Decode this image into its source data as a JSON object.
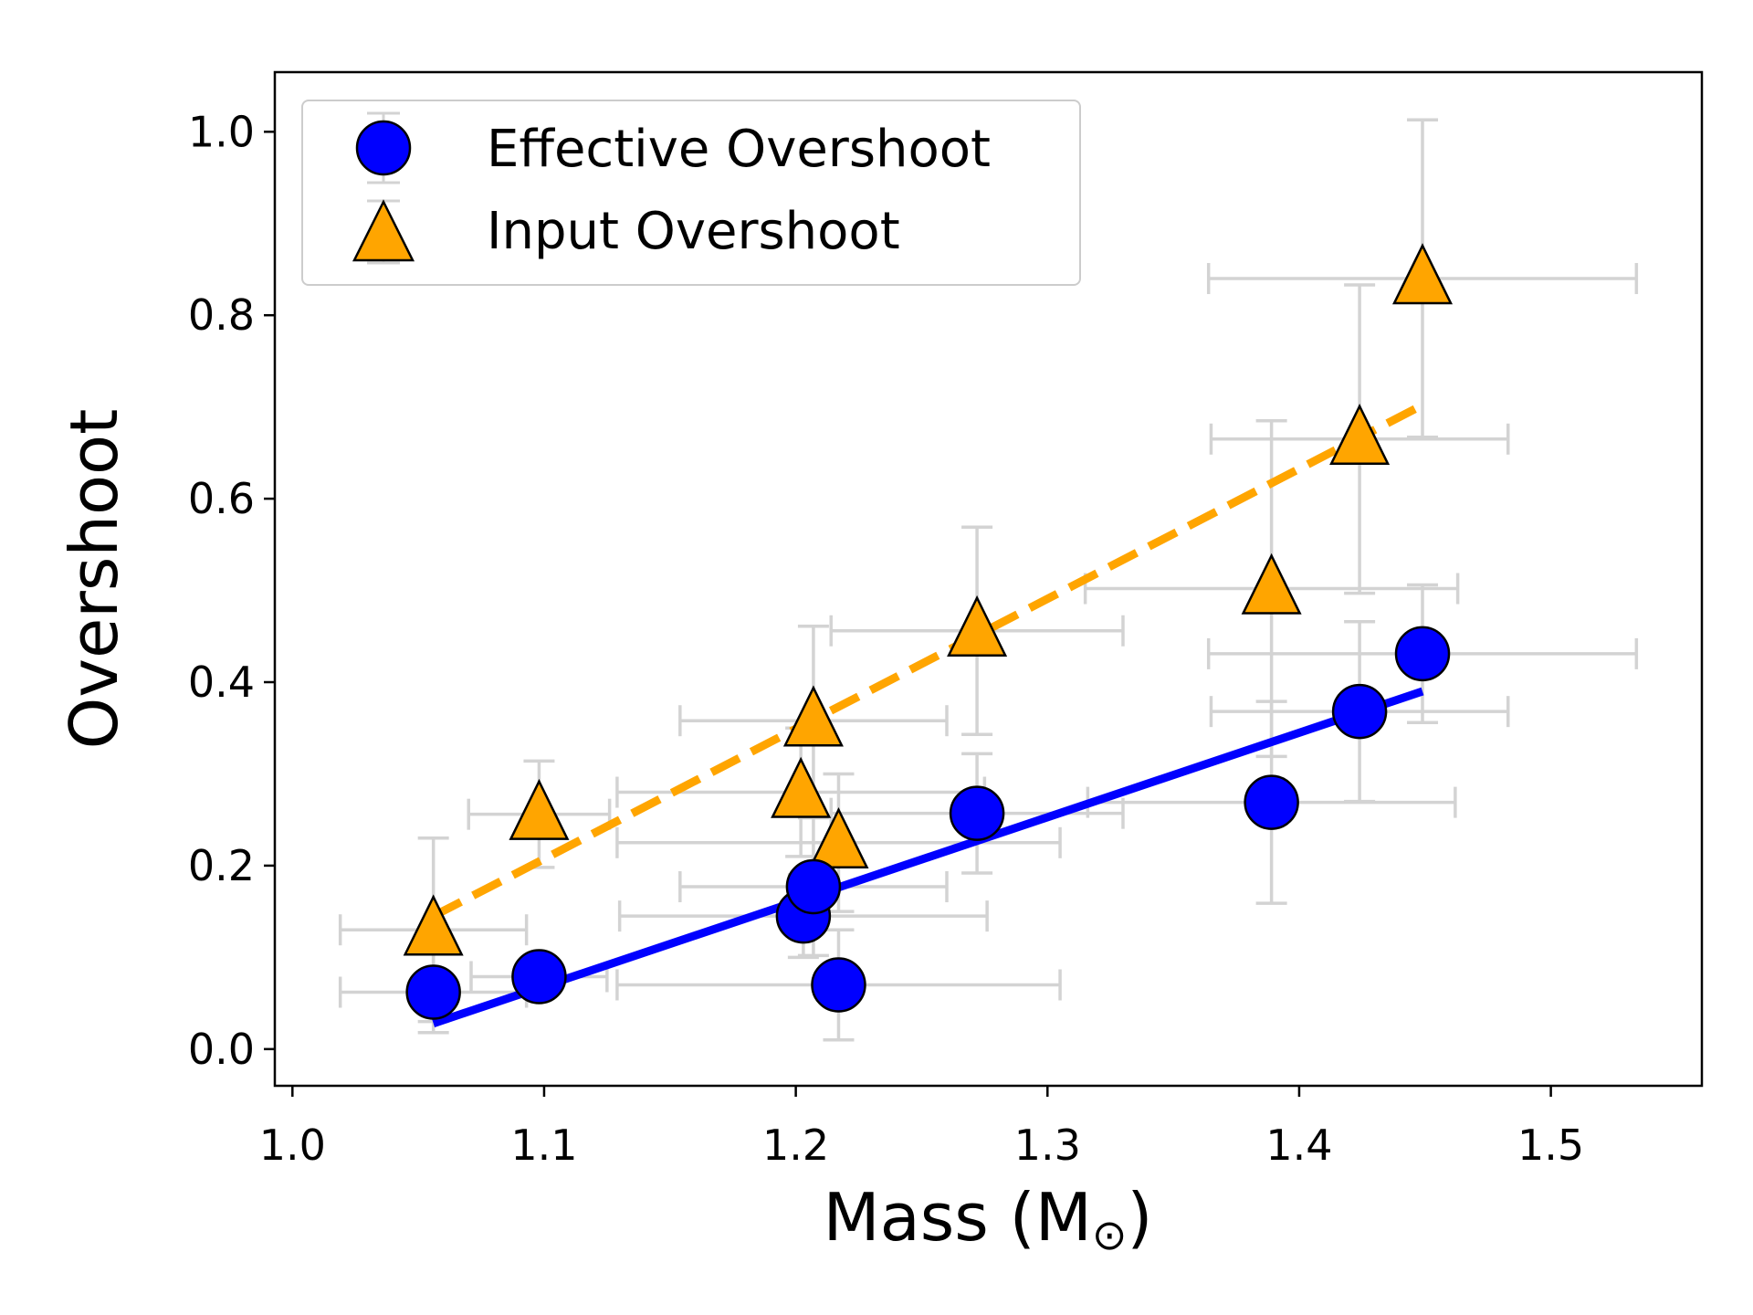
{
  "chart_data": {
    "type": "scatter",
    "xlabel": "Mass (M",
    "xlabel_symbol": "⊙",
    "xlabel_close": ")",
    "ylabel": "Overshoot",
    "xlim": [
      0.993,
      1.56
    ],
    "ylim": [
      -0.04,
      1.065
    ],
    "xticks": [
      1.0,
      1.1,
      1.2,
      1.3,
      1.4,
      1.5
    ],
    "xtick_labels": [
      "1.0",
      "1.1",
      "1.2",
      "1.3",
      "1.4",
      "1.5"
    ],
    "yticks": [
      0.0,
      0.2,
      0.4,
      0.6,
      0.8,
      1.0
    ],
    "ytick_labels": [
      "0.0",
      "0.2",
      "0.4",
      "0.6",
      "0.8",
      "1.0"
    ],
    "legend_position": "top-left",
    "errorbar_color": "#d3d3d3",
    "series": [
      {
        "name": "Effective Overshoot",
        "marker": "circle",
        "color": "#0000ff",
        "edge_color": "#000000",
        "points": [
          {
            "x": 1.056,
            "y": 0.062,
            "xerr": 0.037,
            "yerr": 0.044
          },
          {
            "x": 1.098,
            "y": 0.079,
            "xerr": 0.027,
            "yerr": 0.013
          },
          {
            "x": 1.203,
            "y": 0.145,
            "xerr": 0.073,
            "yerr": 0.045
          },
          {
            "x": 1.207,
            "y": 0.177,
            "xerr": 0.053,
            "yerr": 0.075
          },
          {
            "x": 1.217,
            "y": 0.07,
            "xerr": 0.088,
            "yerr": 0.06
          },
          {
            "x": 1.272,
            "y": 0.257,
            "xerr": 0.058,
            "yerr": 0.065
          },
          {
            "x": 1.389,
            "y": 0.269,
            "xerr": 0.073,
            "yerr": 0.11
          },
          {
            "x": 1.424,
            "y": 0.368,
            "xerr": 0.059,
            "yerr": 0.098
          },
          {
            "x": 1.449,
            "y": 0.431,
            "xerr": 0.085,
            "yerr": 0.075
          }
        ],
        "fit_line": {
          "x": [
            1.056,
            1.449
          ],
          "y": [
            0.028,
            0.39
          ],
          "style": "solid"
        }
      },
      {
        "name": "Input Overshoot",
        "marker": "triangle",
        "color": "#ffa500",
        "edge_color": "#000000",
        "points": [
          {
            "x": 1.056,
            "y": 0.13,
            "xerr": 0.037,
            "yerr": 0.1
          },
          {
            "x": 1.098,
            "y": 0.256,
            "xerr": 0.028,
            "yerr": 0.058
          },
          {
            "x": 1.202,
            "y": 0.28,
            "xerr": 0.073,
            "yerr": 0.07
          },
          {
            "x": 1.207,
            "y": 0.358,
            "xerr": 0.053,
            "yerr": 0.103
          },
          {
            "x": 1.217,
            "y": 0.225,
            "xerr": 0.088,
            "yerr": 0.075
          },
          {
            "x": 1.272,
            "y": 0.456,
            "xerr": 0.058,
            "yerr": 0.113
          },
          {
            "x": 1.389,
            "y": 0.502,
            "xerr": 0.074,
            "yerr": 0.183
          },
          {
            "x": 1.424,
            "y": 0.665,
            "xerr": 0.059,
            "yerr": 0.168
          },
          {
            "x": 1.449,
            "y": 0.84,
            "xerr": 0.085,
            "yerr": 0.173
          }
        ],
        "fit_line": {
          "x": [
            1.056,
            1.449
          ],
          "y": [
            0.145,
            0.702
          ],
          "style": "dashed"
        }
      }
    ]
  }
}
